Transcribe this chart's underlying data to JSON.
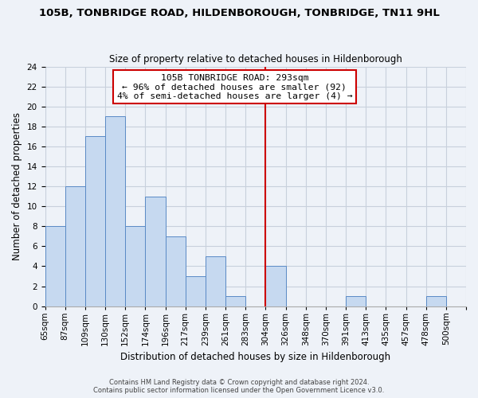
{
  "title": "105B, TONBRIDGE ROAD, HILDENBOROUGH, TONBRIDGE, TN11 9HL",
  "subtitle": "Size of property relative to detached houses in Hildenborough",
  "xlabel": "Distribution of detached houses by size in Hildenborough",
  "ylabel": "Number of detached properties",
  "footer_line1": "Contains HM Land Registry data © Crown copyright and database right 2024.",
  "footer_line2": "Contains public sector information licensed under the Open Government Licence v3.0.",
  "bin_labels": [
    "65sqm",
    "87sqm",
    "109sqm",
    "130sqm",
    "152sqm",
    "174sqm",
    "196sqm",
    "217sqm",
    "239sqm",
    "261sqm",
    "283sqm",
    "304sqm",
    "326sqm",
    "348sqm",
    "370sqm",
    "391sqm",
    "413sqm",
    "435sqm",
    "457sqm",
    "478sqm",
    "500sqm"
  ],
  "bar_heights": [
    8,
    12,
    17,
    19,
    8,
    11,
    7,
    3,
    5,
    1,
    0,
    4,
    0,
    0,
    0,
    1,
    0,
    0,
    0,
    1,
    0
  ],
  "bar_color": "#c6d9f0",
  "bar_edge_color": "#5a8ac6",
  "grid_color": "#c8d0dc",
  "vline_x_index": 11,
  "vline_color": "#cc0000",
  "annotation_title": "105B TONBRIDGE ROAD: 293sqm",
  "annotation_line1": "← 96% of detached houses are smaller (92)",
  "annotation_line2": "4% of semi-detached houses are larger (4) →",
  "annotation_box_color": "#ffffff",
  "annotation_box_edge": "#cc0000",
  "ylim": [
    0,
    24
  ],
  "yticks": [
    0,
    2,
    4,
    6,
    8,
    10,
    12,
    14,
    16,
    18,
    20,
    22,
    24
  ],
  "num_bins": 21,
  "bg_color": "#eef2f8",
  "title_fontsize": 9.5,
  "subtitle_fontsize": 8.5,
  "axis_label_fontsize": 8.5,
  "tick_fontsize": 7.5,
  "footer_fontsize": 6.0
}
